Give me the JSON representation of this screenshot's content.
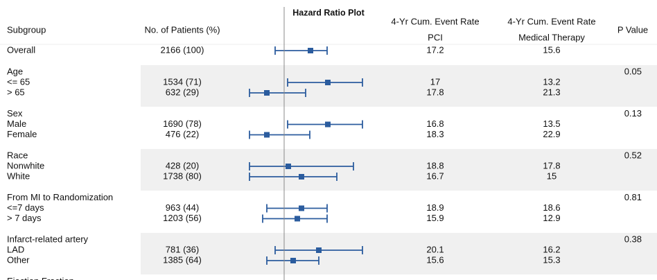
{
  "chart_data": {
    "type": "forest",
    "title": "Hazard Ratio Plot",
    "columns": {
      "subgroup": "Subgroup",
      "patients": "No. of Patients (%)",
      "pci_header": "4-Yr Cum. Event Rate",
      "pci": "PCI",
      "mt_header": "4-Yr Cum. Event Rate",
      "mt": "Medical Therapy",
      "pvalue": "P Value"
    },
    "xlim": [
      0.65,
      1.675
    ],
    "reference": 1,
    "color": "#2b5c9e",
    "overall": {
      "label": "Overall",
      "patients": "2166 (100)",
      "pci": 17.2,
      "mt": 15.6,
      "hr": 1.19,
      "lower": 0.935,
      "upper": 1.31
    },
    "groups": [
      {
        "label": "Age",
        "pvalue": 0.05,
        "rows": [
          {
            "label": "<= 65",
            "patients": "1534 (71)",
            "pci": 17,
            "mt": 13.2,
            "hr": 1.315,
            "lower": 1.025,
            "upper": 1.565
          },
          {
            "label": "> 65",
            "patients": "632 (29)",
            "pci": 17.8,
            "mt": 21.3,
            "hr": 0.875,
            "lower": 0.75,
            "upper": 1.155
          }
        ]
      },
      {
        "label": "Sex",
        "pvalue": 0.13,
        "rows": [
          {
            "label": "Male",
            "patients": "1690 (78)",
            "pci": 16.8,
            "mt": 13.5,
            "hr": 1.315,
            "lower": 1.025,
            "upper": 1.565
          },
          {
            "label": "Female",
            "patients": "476 (22)",
            "pci": 18.3,
            "mt": 22.9,
            "hr": 0.875,
            "lower": 0.75,
            "upper": 1.185
          }
        ]
      },
      {
        "label": "Race",
        "pvalue": 0.52,
        "rows": [
          {
            "label": "Nonwhite",
            "patients": "428 (20)",
            "pci": 18.8,
            "mt": 17.8,
            "hr": 1.03,
            "lower": 0.75,
            "upper": 1.5
          },
          {
            "label": "White",
            "patients": "1738 (80)",
            "pci": 16.7,
            "mt": 15,
            "hr": 1.125,
            "lower": 0.75,
            "upper": 1.38
          }
        ]
      },
      {
        "label": "From MI to Randomization",
        "pvalue": 0.81,
        "rows": [
          {
            "label": "<=7 days",
            "patients": "963 (44)",
            "pci": 18.9,
            "mt": 18.6,
            "hr": 1.125,
            "lower": 0.875,
            "upper": 1.31
          },
          {
            "label": "> 7 days",
            "patients": "1203 (56)",
            "pci": 15.9,
            "mt": 12.9,
            "hr": 1.095,
            "lower": 0.845,
            "upper": 1.31
          }
        ]
      },
      {
        "label": "Infarct-related artery",
        "pvalue": 0.38,
        "rows": [
          {
            "label": "LAD",
            "patients": "781 (36)",
            "pci": 20.1,
            "mt": 16.2,
            "hr": 1.25,
            "lower": 0.935,
            "upper": 1.565
          },
          {
            "label": "Other",
            "patients": "1385 (64)",
            "pci": 15.6,
            "mt": 15.3,
            "hr": 1.065,
            "lower": 0.875,
            "upper": 1.25
          }
        ]
      },
      {
        "label": "Ejection Fraction",
        "rows": []
      }
    ]
  }
}
